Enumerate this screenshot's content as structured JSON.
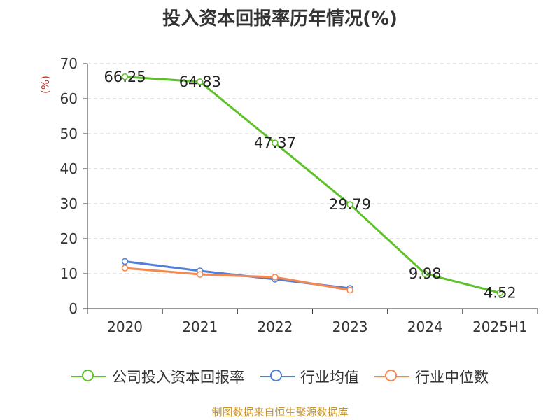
{
  "chart_data": {
    "type": "line",
    "title": "投入资本回报率历年情况(%)",
    "ylabel": "(%)",
    "categories": [
      "2020",
      "2021",
      "2022",
      "2023",
      "2024",
      "2025H1"
    ],
    "ylim": [
      0,
      70
    ],
    "yticks": [
      "0",
      "10",
      "20",
      "30",
      "40",
      "50",
      "60",
      "70"
    ],
    "grid": true,
    "legend_position": "bottom",
    "series": [
      {
        "name": "公司投入资本回报率",
        "color": "#5cc227",
        "values": [
          66.25,
          64.83,
          47.37,
          29.79,
          9.98,
          4.52
        ],
        "labels": [
          "66.25",
          "64.83",
          "47.37",
          "29.79",
          "9.98",
          "4.52"
        ]
      },
      {
        "name": "行业均值",
        "color": "#4f7fd9",
        "values": [
          13.5,
          10.8,
          8.4,
          5.8,
          null,
          null
        ]
      },
      {
        "name": "行业中位数",
        "color": "#f5874f",
        "values": [
          11.6,
          9.8,
          9.0,
          5.3,
          null,
          null
        ]
      }
    ]
  },
  "source": "制图数据来自恒生聚源数据库"
}
